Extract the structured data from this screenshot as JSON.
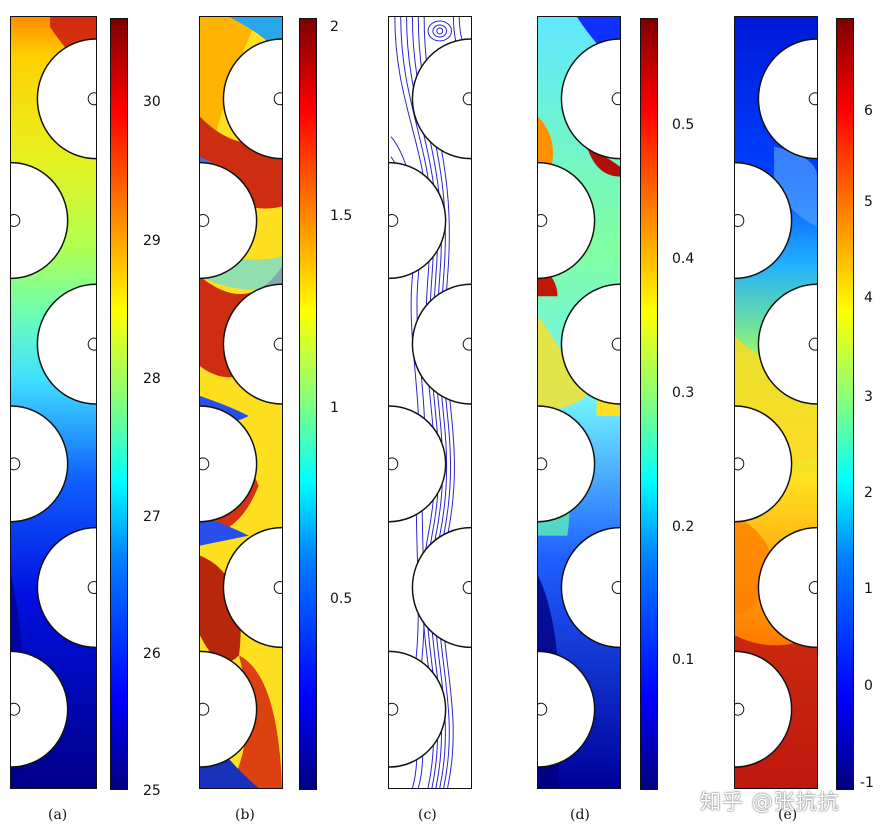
{
  "panels": [
    {
      "caption": "(a)",
      "ticks": [
        "30",
        "29",
        "28",
        "27",
        "26",
        "25"
      ],
      "colorbar_range": [
        25,
        30.6
      ]
    },
    {
      "caption": "(b)",
      "ticks": [
        "2",
        "1.5",
        "1",
        "0.5"
      ],
      "colorbar_range": [
        0,
        2
      ]
    },
    {
      "caption": "(c)",
      "ticks": []
    },
    {
      "caption": "(d)",
      "ticks": [
        "0.5",
        "0.4",
        "0.3",
        "0.2",
        "0.1"
      ],
      "colorbar_range": [
        0,
        0.58
      ]
    },
    {
      "caption": "(e)",
      "ticks": [
        "6",
        "5",
        "4",
        "3",
        "2",
        "1",
        "0",
        "-1"
      ],
      "colorbar_range": [
        -1,
        6.8
      ]
    }
  ],
  "watermark": "知乎 @张抗抗",
  "colormap": [
    "#00007f",
    "#0000ff",
    "#00ffff",
    "#ffff00",
    "#ff0000",
    "#7f0000"
  ]
}
